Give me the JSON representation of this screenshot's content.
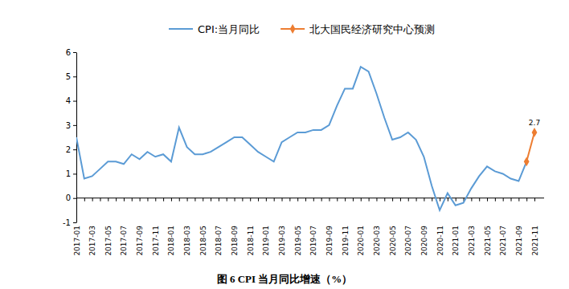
{
  "chart_data": {
    "type": "line",
    "title": "图 6 CPI 当月同比增速（%）",
    "categories": [
      "2017-01",
      null,
      "2017-03",
      null,
      "2017-05",
      null,
      "2017-07",
      null,
      "2017-09",
      null,
      "2017-11",
      null,
      "2018-01",
      null,
      "2018-03",
      null,
      "2018-05",
      null,
      "2018-07",
      null,
      "2018-09",
      null,
      "2018-11",
      null,
      "2019-01",
      null,
      "2019-03",
      null,
      "2019-05",
      null,
      "2019-07",
      null,
      "2019-09",
      null,
      "2019-11",
      null,
      "2020-01",
      null,
      "2020-03",
      null,
      "2020-05",
      null,
      "2020-07",
      null,
      "2020-09",
      null,
      "2020-11",
      null,
      "2021-01",
      null,
      "2021-03",
      null,
      "2021-05",
      null,
      "2021-07",
      null,
      "2021-09",
      null,
      "2021-11"
    ],
    "series": [
      {
        "name": "CPI:当月同比",
        "color": "#5B9BD5",
        "marker": "none",
        "line_style": "solid",
        "values": [
          2.5,
          0.8,
          0.9,
          1.2,
          1.5,
          1.5,
          1.4,
          1.8,
          1.6,
          1.9,
          1.7,
          1.8,
          1.5,
          2.9,
          2.1,
          1.8,
          1.8,
          1.9,
          2.1,
          2.3,
          2.5,
          2.5,
          2.2,
          1.9,
          1.7,
          1.5,
          2.3,
          2.5,
          2.7,
          2.7,
          2.8,
          2.8,
          3.0,
          3.8,
          4.5,
          4.5,
          5.4,
          5.2,
          4.3,
          3.3,
          2.4,
          2.5,
          2.7,
          2.4,
          1.7,
          0.5,
          -0.5,
          0.2,
          -0.3,
          -0.2,
          0.4,
          0.9,
          1.3,
          1.1,
          1.0,
          0.8,
          0.7,
          1.5,
          null
        ]
      },
      {
        "name": "北大国民经济研究中心预测",
        "color": "#ED7D31",
        "marker": "diamond",
        "line_style": "solid",
        "values": [
          null,
          null,
          null,
          null,
          null,
          null,
          null,
          null,
          null,
          null,
          null,
          null,
          null,
          null,
          null,
          null,
          null,
          null,
          null,
          null,
          null,
          null,
          null,
          null,
          null,
          null,
          null,
          null,
          null,
          null,
          null,
          null,
          null,
          null,
          null,
          null,
          null,
          null,
          null,
          null,
          null,
          null,
          null,
          null,
          null,
          null,
          null,
          null,
          null,
          null,
          null,
          null,
          null,
          null,
          null,
          null,
          null,
          1.5,
          2.7
        ],
        "value_labels": [
          null,
          null,
          null,
          null,
          null,
          null,
          null,
          null,
          null,
          null,
          null,
          null,
          null,
          null,
          null,
          null,
          null,
          null,
          null,
          null,
          null,
          null,
          null,
          null,
          null,
          null,
          null,
          null,
          null,
          null,
          null,
          null,
          null,
          null,
          null,
          null,
          null,
          null,
          null,
          null,
          null,
          null,
          null,
          null,
          null,
          null,
          null,
          null,
          null,
          null,
          null,
          null,
          null,
          null,
          null,
          null,
          null,
          null,
          "2.7"
        ]
      }
    ],
    "ylim": [
      -1,
      6
    ],
    "yticks": [
      -1,
      0,
      1,
      2,
      3,
      4,
      5,
      6
    ],
    "grid": false,
    "legend": "top",
    "data_labels": true
  }
}
